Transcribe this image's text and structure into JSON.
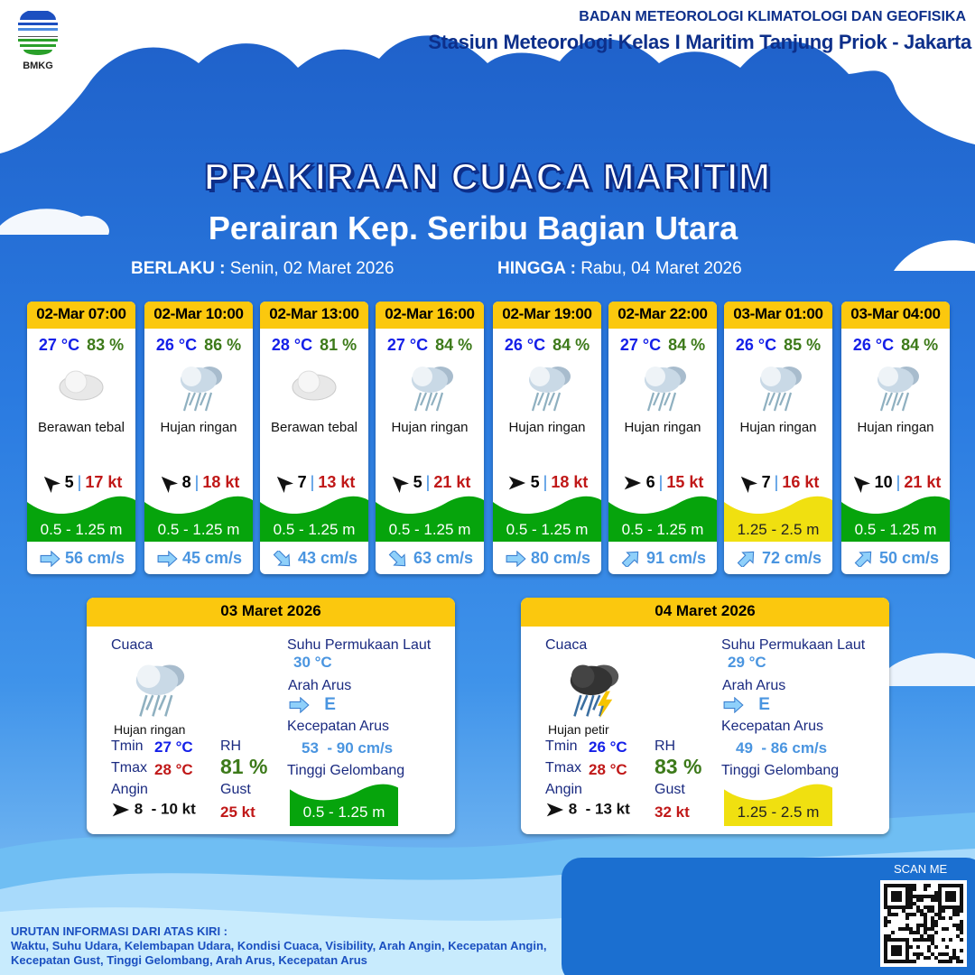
{
  "header": {
    "logo": "BMKG",
    "org": "BADAN METEOROLOGI KLIMATOLOGI DAN GEOFISIKA",
    "station": "Stasiun Meteorologi Kelas I Maritim Tanjung Priok - Jakarta"
  },
  "title": "PRAKIRAAN CUACA MARITIM",
  "subtitle": "Perairan Kep. Seribu Bagian Utara",
  "validity": {
    "from_label": "BERLAKU :",
    "from": "Senin, 02 Maret 2026",
    "to_label": "HINGGA :",
    "to": "Rabu, 04 Maret 2026"
  },
  "colors": {
    "header_yellow": "#fbc80e",
    "wave_green": "#06a40c",
    "wave_yellow": "#f0e010",
    "temp": "#1520e8",
    "rh": "#3d7a1a",
    "gust": "#c01818",
    "current": "#4a95e0"
  },
  "forecasts": [
    {
      "time": "02-Mar 07:00",
      "temp": "27 °C",
      "rh": "83 %",
      "icon": "cloud-icon",
      "cond": "Berawan tebal",
      "wind_dir": "northwest",
      "wind": "5",
      "gust": "17 kt",
      "wave": "0.5 - 1.25 m",
      "wave_level": "green",
      "cur_dir": "east",
      "current": "56 cm/s"
    },
    {
      "time": "02-Mar 10:00",
      "temp": "26 °C",
      "rh": "86 %",
      "icon": "rain-icon",
      "cond": "Hujan ringan",
      "wind_dir": "northwest",
      "wind": "8",
      "gust": "18 kt",
      "wave": "0.5 - 1.25 m",
      "wave_level": "green",
      "cur_dir": "east",
      "current": "45 cm/s"
    },
    {
      "time": "02-Mar 13:00",
      "temp": "28 °C",
      "rh": "81 %",
      "icon": "cloud-icon",
      "cond": "Berawan tebal",
      "wind_dir": "northwest",
      "wind": "7",
      "gust": "13 kt",
      "wave": "0.5 - 1.25 m",
      "wave_level": "green",
      "cur_dir": "southeast",
      "current": "43 cm/s"
    },
    {
      "time": "02-Mar 16:00",
      "temp": "27 °C",
      "rh": "84 %",
      "icon": "rain-icon",
      "cond": "Hujan ringan",
      "wind_dir": "northwest",
      "wind": "5",
      "gust": "21 kt",
      "wave": "0.5 - 1.25 m",
      "wave_level": "green",
      "cur_dir": "southeast",
      "current": "63 cm/s"
    },
    {
      "time": "02-Mar 19:00",
      "temp": "26 °C",
      "rh": "84 %",
      "icon": "rain-icon",
      "cond": "Hujan ringan",
      "wind_dir": "east",
      "wind": "5",
      "gust": "18 kt",
      "wave": "0.5 - 1.25 m",
      "wave_level": "green",
      "cur_dir": "east",
      "current": "80 cm/s"
    },
    {
      "time": "02-Mar 22:00",
      "temp": "27 °C",
      "rh": "84 %",
      "icon": "rain-icon",
      "cond": "Hujan ringan",
      "wind_dir": "east",
      "wind": "6",
      "gust": "15 kt",
      "wave": "0.5 - 1.25 m",
      "wave_level": "green",
      "cur_dir": "northeast",
      "current": "91 cm/s"
    },
    {
      "time": "03-Mar 01:00",
      "temp": "26 °C",
      "rh": "85 %",
      "icon": "rain-icon",
      "cond": "Hujan ringan",
      "wind_dir": "northwest",
      "wind": "7",
      "gust": "16 kt",
      "wave": "1.25 - 2.5 m",
      "wave_level": "yellow",
      "cur_dir": "northeast",
      "current": "72 cm/s"
    },
    {
      "time": "03-Mar 04:00",
      "temp": "26 °C",
      "rh": "84 %",
      "icon": "rain-icon",
      "cond": "Hujan ringan",
      "wind_dir": "northwest",
      "wind": "10",
      "gust": "21 kt",
      "wave": "0.5 - 1.25 m",
      "wave_level": "green",
      "cur_dir": "northeast",
      "current": "50 cm/s"
    }
  ],
  "labels": {
    "weather": "Cuaca",
    "tmin": "Tmin",
    "tmax": "Tmax",
    "rh": "RH",
    "wind": "Angin",
    "gust": "Gust",
    "sst": "Suhu Permukaan Laut",
    "cur_dir": "Arah Arus",
    "cur_speed": "Kecepatan Arus",
    "wave": "Tinggi Gelombang"
  },
  "daily": [
    {
      "date": "03 Maret 2026",
      "icon": "rain-icon",
      "cond": "Hujan ringan",
      "tmin": "27 °C",
      "tmax": "28 °C",
      "rh": "81 %",
      "wind_dir": "east",
      "wind": "8  - 10 kt",
      "gust": "25 kt",
      "sst": "30 °C",
      "cur_dir": "E",
      "cur_speed": "53  - 90 cm/s",
      "wave": "0.5 - 1.25 m",
      "wave_level": "green"
    },
    {
      "date": "04 Maret 2026",
      "icon": "thunderstorm-icon",
      "cond": "Hujan petir",
      "tmin": "26 °C",
      "tmax": "28 °C",
      "rh": "83 %",
      "wind_dir": "east",
      "wind": "8  - 13 kt",
      "gust": "32 kt",
      "sst": "29 °C",
      "cur_dir": "E",
      "cur_speed": "49  - 86 cm/s",
      "wave": "1.25 - 2.5 m",
      "wave_level": "yellow"
    }
  ],
  "footer": {
    "title": "URUTAN INFORMASI DARI ATAS KIRI :",
    "text": "Waktu, Suhu Udara, Kelembapan Udara, Kondisi Cuaca, Visibility, Arah Angin, Kecepatan Angin, Kecepatan Gust, Tinggi Gelombang, Arah Arus, Kecepatan Arus",
    "scan": "SCAN ME"
  }
}
